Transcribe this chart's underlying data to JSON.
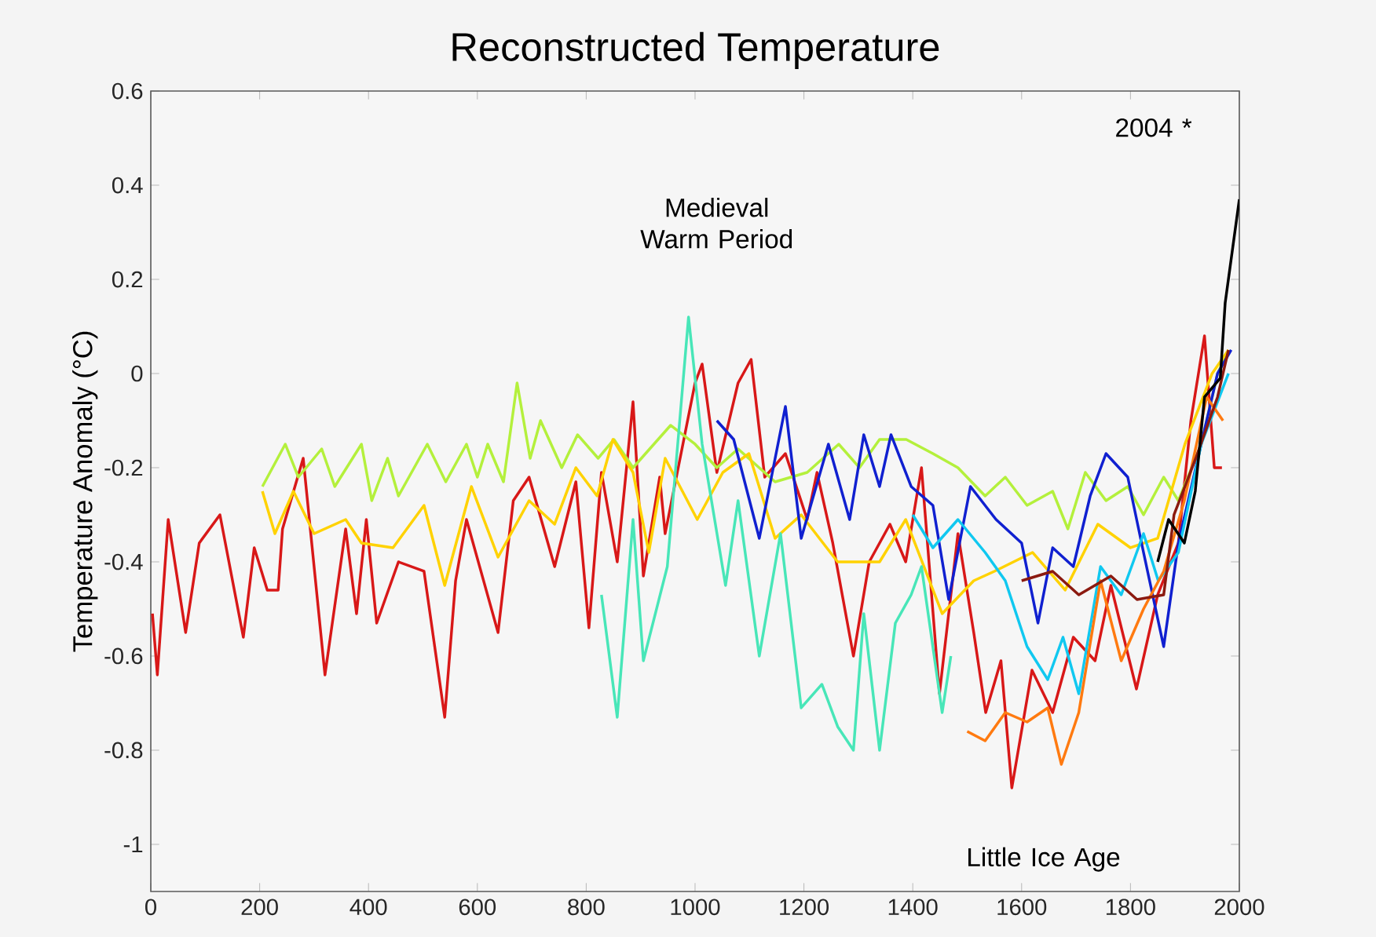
{
  "chart_data": {
    "type": "line",
    "title": "Reconstructed Temperature",
    "ylabel": "Temperature Anomaly (°C)",
    "xlim": [
      0,
      2000
    ],
    "xticks": [
      0,
      200,
      400,
      600,
      800,
      1000,
      1200,
      1400,
      1600,
      1800,
      2000
    ],
    "ylim": [
      -1.1,
      0.6
    ],
    "yticks": [
      -1,
      -0.8,
      -0.6,
      -0.4,
      -0.2,
      0,
      0.2,
      0.4,
      0.6
    ],
    "annotations": [
      "Medieval Warm Period",
      "Little Ice Age",
      "2004 *"
    ],
    "series": [
      {
        "color": "#d81818",
        "x": [
          3,
          12,
          32,
          64,
          89,
          127,
          170,
          190,
          214,
          234,
          242,
          280,
          320,
          358,
          378,
          396,
          415,
          455,
          502,
          540,
          560,
          580,
          638,
          666,
          695,
          742,
          781,
          805,
          828,
          857,
          886,
          905,
          935,
          945,
          1000,
          1013,
          1040,
          1079,
          1103,
          1128,
          1166,
          1206,
          1224,
          1253,
          1291,
          1320,
          1358,
          1387,
          1416,
          1449,
          1483,
          1512,
          1534,
          1562,
          1582,
          1619,
          1657,
          1695,
          1735,
          1764,
          1811,
          1850,
          1888,
          1911,
          1936,
          1954,
          1968
        ],
        "values": [
          -0.51,
          -0.64,
          -0.31,
          -0.55,
          -0.36,
          -0.3,
          -0.56,
          -0.37,
          -0.46,
          -0.46,
          -0.33,
          -0.18,
          -0.64,
          -0.33,
          -0.51,
          -0.31,
          -0.53,
          -0.4,
          -0.42,
          -0.73,
          -0.44,
          -0.31,
          -0.55,
          -0.27,
          -0.22,
          -0.41,
          -0.23,
          -0.54,
          -0.21,
          -0.4,
          -0.06,
          -0.43,
          -0.22,
          -0.34,
          -0.02,
          0.02,
          -0.21,
          -0.02,
          0.03,
          -0.22,
          -0.17,
          -0.31,
          -0.21,
          -0.36,
          -0.6,
          -0.4,
          -0.32,
          -0.4,
          -0.2,
          -0.68,
          -0.34,
          -0.55,
          -0.72,
          -0.61,
          -0.88,
          -0.63,
          -0.72,
          -0.56,
          -0.61,
          -0.45,
          -0.67,
          -0.47,
          -0.36,
          -0.1,
          0.08,
          -0.2,
          -0.2
        ]
      },
      {
        "color": "#b4f03c",
        "x": [
          205,
          247,
          271,
          314,
          338,
          387,
          406,
          435,
          455,
          508,
          542,
          580,
          600,
          619,
          648,
          673,
          697,
          716,
          755,
          784,
          822,
          851,
          886,
          955,
          1000,
          1040,
          1079,
          1147,
          1206,
          1264,
          1302,
          1339,
          1388,
          1437,
          1483,
          1533,
          1570,
          1610,
          1657,
          1685,
          1717,
          1755,
          1795,
          1824,
          1861,
          1888,
          1930,
          1960,
          1980
        ],
        "values": [
          -0.24,
          -0.15,
          -0.22,
          -0.16,
          -0.24,
          -0.15,
          -0.27,
          -0.18,
          -0.26,
          -0.15,
          -0.23,
          -0.15,
          -0.22,
          -0.15,
          -0.23,
          -0.02,
          -0.18,
          -0.1,
          -0.2,
          -0.13,
          -0.18,
          -0.14,
          -0.2,
          -0.11,
          -0.15,
          -0.2,
          -0.16,
          -0.23,
          -0.21,
          -0.15,
          -0.2,
          -0.14,
          -0.14,
          -0.17,
          -0.2,
          -0.26,
          -0.22,
          -0.28,
          -0.25,
          -0.33,
          -0.21,
          -0.27,
          -0.24,
          -0.3,
          -0.22,
          -0.27,
          -0.15,
          0.0,
          0.05
        ]
      },
      {
        "color": "#ffd200",
        "x": [
          205,
          228,
          262,
          300,
          358,
          387,
          445,
          502,
          540,
          589,
          638,
          695,
          742,
          781,
          820,
          849,
          886,
          915,
          945,
          1004,
          1051,
          1099,
          1147,
          1195,
          1262,
          1339,
          1387,
          1454,
          1512,
          1550,
          1620,
          1680,
          1740,
          1800,
          1850,
          1900,
          1950,
          1980
        ],
        "values": [
          -0.25,
          -0.34,
          -0.25,
          -0.34,
          -0.31,
          -0.36,
          -0.37,
          -0.28,
          -0.45,
          -0.24,
          -0.39,
          -0.27,
          -0.32,
          -0.2,
          -0.26,
          -0.14,
          -0.21,
          -0.38,
          -0.18,
          -0.31,
          -0.21,
          -0.17,
          -0.35,
          -0.3,
          -0.4,
          -0.4,
          -0.31,
          -0.51,
          -0.44,
          -0.42,
          -0.38,
          -0.46,
          -0.32,
          -0.37,
          -0.35,
          -0.15,
          0.0,
          0.05
        ]
      },
      {
        "color": "#48e6b8",
        "x": [
          828,
          857,
          886,
          905,
          949,
          988,
          1013,
          1056,
          1079,
          1118,
          1157,
          1195,
          1233,
          1262,
          1291,
          1310,
          1339,
          1368,
          1397,
          1416,
          1454,
          1470
        ],
        "values": [
          -0.47,
          -0.73,
          -0.31,
          -0.61,
          -0.41,
          0.12,
          -0.15,
          -0.45,
          -0.27,
          -0.6,
          -0.34,
          -0.71,
          -0.66,
          -0.75,
          -0.8,
          -0.51,
          -0.8,
          -0.53,
          -0.47,
          -0.41,
          -0.72,
          -0.6
        ]
      },
      {
        "color": "#1020d0",
        "x": [
          1040,
          1071,
          1118,
          1166,
          1195,
          1245,
          1284,
          1310,
          1339,
          1360,
          1397,
          1437,
          1466,
          1506,
          1553,
          1600,
          1630,
          1657,
          1695,
          1726,
          1755,
          1795,
          1824,
          1861,
          1888,
          1930,
          1960,
          1985
        ],
        "values": [
          -0.1,
          -0.14,
          -0.35,
          -0.07,
          -0.35,
          -0.15,
          -0.31,
          -0.13,
          -0.24,
          -0.13,
          -0.24,
          -0.28,
          -0.48,
          -0.24,
          -0.31,
          -0.36,
          -0.53,
          -0.37,
          -0.41,
          -0.26,
          -0.17,
          -0.22,
          -0.38,
          -0.58,
          -0.36,
          -0.15,
          0.0,
          0.05
        ]
      },
      {
        "color": "#10c8f0",
        "x": [
          1400,
          1437,
          1483,
          1533,
          1570,
          1610,
          1648,
          1676,
          1705,
          1745,
          1783,
          1824,
          1851,
          1888,
          1930,
          1980
        ],
        "values": [
          -0.3,
          -0.37,
          -0.31,
          -0.38,
          -0.44,
          -0.58,
          -0.65,
          -0.56,
          -0.68,
          -0.41,
          -0.47,
          -0.34,
          -0.44,
          -0.38,
          -0.15,
          0.0
        ]
      },
      {
        "color": "#ff7a10",
        "x": [
          1500,
          1533,
          1570,
          1610,
          1648,
          1673,
          1705,
          1745,
          1783,
          1824,
          1861,
          1899,
          1940,
          1970
        ],
        "values": [
          -0.76,
          -0.78,
          -0.72,
          -0.74,
          -0.71,
          -0.83,
          -0.72,
          -0.44,
          -0.61,
          -0.5,
          -0.42,
          -0.27,
          -0.05,
          -0.1
        ]
      },
      {
        "color": "#8b1a10",
        "x": [
          1600,
          1657,
          1705,
          1764,
          1812,
          1861,
          1880,
          1920,
          1960,
          1980
        ],
        "values": [
          -0.44,
          -0.42,
          -0.47,
          -0.43,
          -0.48,
          -0.47,
          -0.3,
          -0.18,
          -0.05,
          0.05
        ]
      },
      {
        "color": "#000000",
        "x": [
          1850,
          1870,
          1899,
          1919,
          1936,
          1965,
          1974,
          2000
        ],
        "values": [
          -0.4,
          -0.31,
          -0.36,
          -0.25,
          -0.05,
          -0.01,
          0.15,
          0.37
        ]
      }
    ]
  }
}
